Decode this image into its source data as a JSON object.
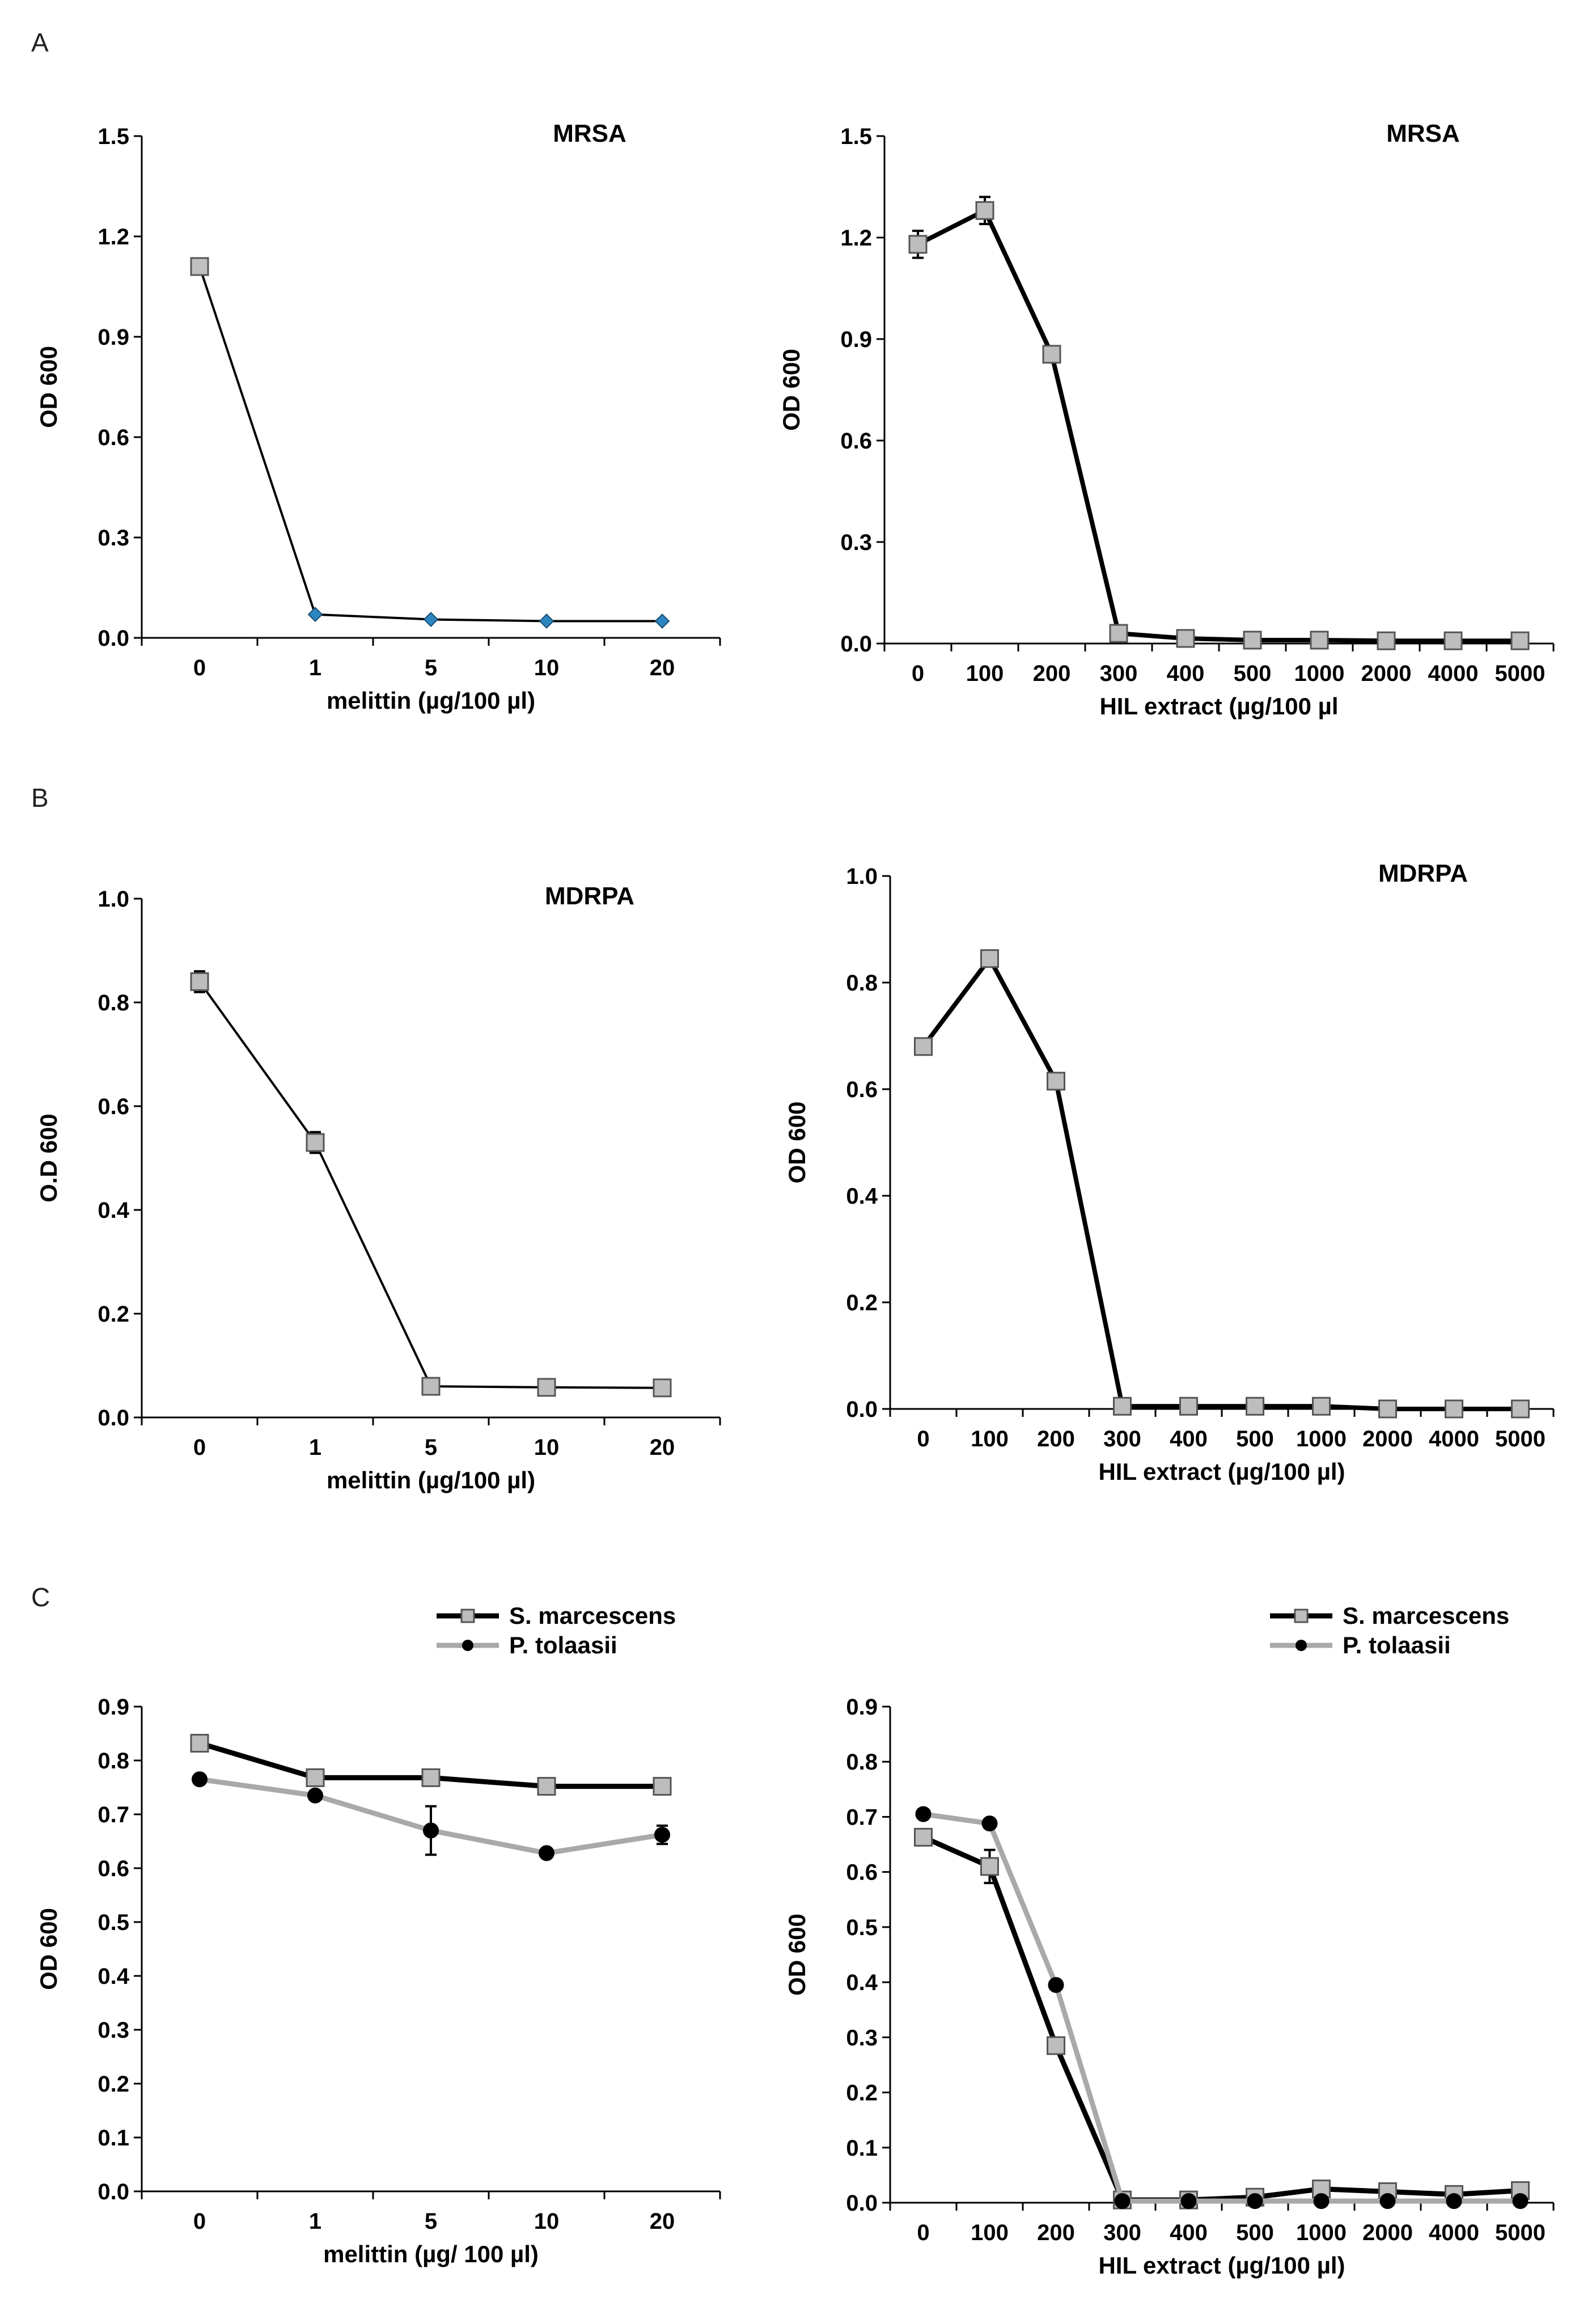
{
  "panels": {
    "a": "A",
    "b": "B",
    "c": "C"
  },
  "chart_data": [
    {
      "id": "A-left",
      "type": "line",
      "title": "MRSA",
      "xlabel": "melittin (µg/100 µl)",
      "ylabel": "OD 600",
      "categories": [
        "0",
        "1",
        "5",
        "10",
        "20"
      ],
      "ylim": [
        0,
        1.5
      ],
      "yticks": [
        "0.0",
        "0.3",
        "0.6",
        "0.9",
        "1.2",
        "1.5"
      ],
      "grid": false,
      "legend": null,
      "series": [
        {
          "name": "MRSA",
          "values": [
            1.11,
            0.07,
            0.055,
            0.05,
            0.05
          ],
          "errors": [
            0,
            0,
            0,
            0,
            0
          ],
          "color": "#000000",
          "lineWidth": 4,
          "marker": "mixed",
          "markerFill": "#c0c0c0",
          "markerAltFill": "#2e86c1"
        }
      ]
    },
    {
      "id": "A-right",
      "type": "line",
      "title": "MRSA",
      "xlabel": "HIL extract (µg/100 µl",
      "ylabel": "OD 600",
      "categories": [
        "0",
        "100",
        "200",
        "300",
        "400",
        "500",
        "1000",
        "2000",
        "4000",
        "5000"
      ],
      "ylim": [
        0,
        1.5
      ],
      "yticks": [
        "0.0",
        "0.3",
        "0.6",
        "0.9",
        "1.2",
        "1.5"
      ],
      "grid": false,
      "legend": null,
      "series": [
        {
          "name": "MRSA",
          "values": [
            1.18,
            1.28,
            0.855,
            0.03,
            0.015,
            0.01,
            0.01,
            0.008,
            0.008,
            0.008
          ],
          "errors": [
            0.04,
            0.04,
            0,
            0,
            0,
            0,
            0,
            0,
            0,
            0
          ],
          "color": "#000000",
          "lineWidth": 8,
          "marker": "square",
          "markerFill": "#bdbdbd"
        }
      ]
    },
    {
      "id": "B-left",
      "type": "line",
      "title": "MDRPA",
      "xlabel": "melittin (µg/100 µl)",
      "ylabel": "O.D 600",
      "categories": [
        "0",
        "1",
        "5",
        "10",
        "20"
      ],
      "ylim": [
        0,
        1.0
      ],
      "yticks": [
        "0.0",
        "0.2",
        "0.4",
        "0.6",
        "0.8",
        "1.0"
      ],
      "grid": false,
      "legend": null,
      "series": [
        {
          "name": "MDRPA",
          "values": [
            0.84,
            0.53,
            0.06,
            0.058,
            0.057
          ],
          "errors": [
            0.02,
            0.02,
            0,
            0,
            0
          ],
          "color": "#000000",
          "lineWidth": 4,
          "marker": "square",
          "markerFill": "#bdbdbd"
        }
      ]
    },
    {
      "id": "B-right",
      "type": "line",
      "title": "MDRPA",
      "xlabel": "HIL extract (µg/100 µl)",
      "ylabel": "OD 600",
      "categories": [
        "0",
        "100",
        "200",
        "300",
        "400",
        "500",
        "1000",
        "2000",
        "4000",
        "5000"
      ],
      "ylim": [
        0,
        1.0
      ],
      "yticks": [
        "0.0",
        "0.2",
        "0.4",
        "0.6",
        "0.8",
        "1.0"
      ],
      "grid": false,
      "legend": null,
      "series": [
        {
          "name": "MDRPA",
          "values": [
            0.68,
            0.845,
            0.615,
            0.005,
            0.005,
            0.005,
            0.005,
            0.0,
            0.0,
            0.0
          ],
          "errors": [
            0,
            0,
            0,
            0,
            0,
            0,
            0,
            0,
            0,
            0
          ],
          "color": "#000000",
          "lineWidth": 8,
          "marker": "square",
          "markerFill": "#bdbdbd"
        }
      ]
    },
    {
      "id": "C-left",
      "type": "line",
      "title": "",
      "xlabel": "melittin (µg/ 100 µl)",
      "ylabel": "OD 600",
      "categories": [
        "0",
        "1",
        "5",
        "10",
        "20"
      ],
      "ylim": [
        0,
        0.9
      ],
      "yticks": [
        "0.0",
        "0.1",
        "0.2",
        "0.3",
        "0.4",
        "0.5",
        "0.6",
        "0.7",
        "0.8",
        "0.9"
      ],
      "grid": false,
      "legend": "top-right",
      "series": [
        {
          "name": "S. marcescens",
          "values": [
            0.832,
            0.768,
            0.768,
            0.752,
            0.752
          ],
          "errors": [
            0,
            0,
            0,
            0,
            0
          ],
          "color": "#000000",
          "lineWidth": 9,
          "marker": "square",
          "markerFill": "#bdbdbd"
        },
        {
          "name": "P. tolaasii",
          "values": [
            0.765,
            0.735,
            0.67,
            0.628,
            0.662
          ],
          "errors": [
            0,
            0,
            0.045,
            0,
            0.017
          ],
          "color": "#a9a9a9",
          "lineWidth": 9,
          "marker": "circle",
          "markerFill": "#000000"
        }
      ]
    },
    {
      "id": "C-right",
      "type": "line",
      "title": "",
      "xlabel": "HIL extract (µg/100 µl)",
      "ylabel": "OD 600",
      "categories": [
        "0",
        "100",
        "200",
        "300",
        "400",
        "500",
        "1000",
        "2000",
        "4000",
        "5000"
      ],
      "ylim": [
        0,
        0.9
      ],
      "yticks": [
        "0.0",
        "0.1",
        "0.2",
        "0.3",
        "0.4",
        "0.5",
        "0.6",
        "0.7",
        "0.8",
        "0.9"
      ],
      "grid": false,
      "legend": "top-right",
      "series": [
        {
          "name": "S. marcescens",
          "values": [
            0.663,
            0.61,
            0.285,
            0.005,
            0.005,
            0.01,
            0.025,
            0.02,
            0.015,
            0.022
          ],
          "errors": [
            0,
            0.03,
            0,
            0,
            0,
            0,
            0,
            0,
            0,
            0
          ],
          "color": "#000000",
          "lineWidth": 9,
          "marker": "square",
          "markerFill": "#bdbdbd"
        },
        {
          "name": "P. tolaasii",
          "values": [
            0.705,
            0.688,
            0.395,
            0.003,
            0.003,
            0.003,
            0.003,
            0.003,
            0.003,
            0.003
          ],
          "errors": [
            0,
            0,
            0,
            0,
            0,
            0,
            0,
            0,
            0,
            0
          ],
          "color": "#a9a9a9",
          "lineWidth": 9,
          "marker": "circle",
          "markerFill": "#000000"
        }
      ]
    }
  ]
}
